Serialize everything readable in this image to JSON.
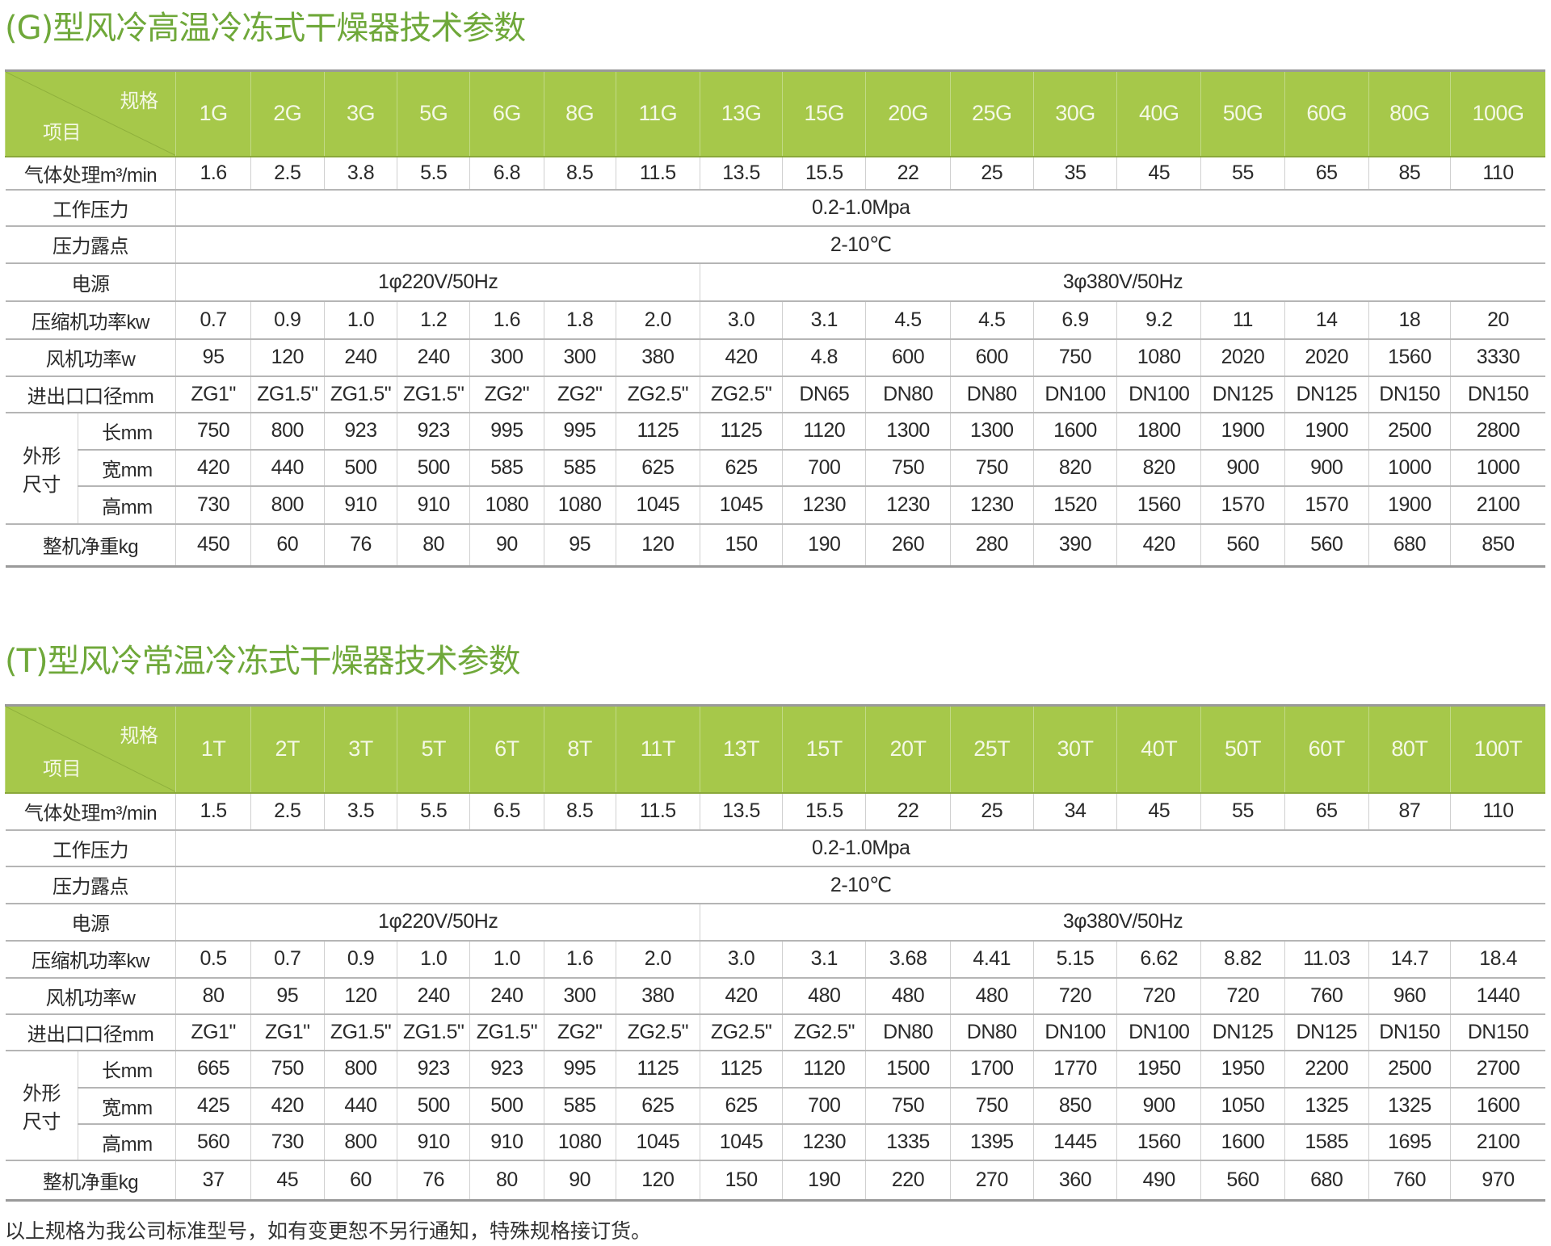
{
  "tables": [
    {
      "title": "(G)型风冷高温冷冻式干燥器技术参数",
      "corner_spec": "规格",
      "corner_item": "项目",
      "models": [
        "1G",
        "2G",
        "3G",
        "5G",
        "6G",
        "8G",
        "11G",
        "13G",
        "15G",
        "20G",
        "25G",
        "30G",
        "40G",
        "50G",
        "60G",
        "80G",
        "100G"
      ],
      "flow": {
        "label": "气体处理m³/min",
        "values": [
          "1.6",
          "2.5",
          "3.8",
          "5.5",
          "6.8",
          "8.5",
          "11.5",
          "13.5",
          "15.5",
          "22",
          "25",
          "35",
          "45",
          "55",
          "65",
          "85",
          "110"
        ]
      },
      "pressure": {
        "label": "工作压力",
        "value": "0.2-1.0Mpa"
      },
      "dewpoint": {
        "label": "压力露点",
        "value": "2-10℃"
      },
      "power": {
        "label": "电源",
        "single": "1φ220V/50Hz",
        "three": "3φ380V/50Hz"
      },
      "compressor": {
        "label": "压缩机功率kw",
        "values": [
          "0.7",
          "0.9",
          "1.0",
          "1.2",
          "1.6",
          "1.8",
          "2.0",
          "3.0",
          "3.1",
          "4.5",
          "4.5",
          "6.9",
          "9.2",
          "11",
          "14",
          "18",
          "20"
        ]
      },
      "fan": {
        "label": "风机功率w",
        "values": [
          "95",
          "120",
          "240",
          "240",
          "300",
          "300",
          "380",
          "420",
          "4.8",
          "600",
          "600",
          "750",
          "1080",
          "2020",
          "2020",
          "1560",
          "3330"
        ]
      },
      "port": {
        "label": "进出口口径mm",
        "values": [
          "ZG1\"",
          "ZG1.5\"",
          "ZG1.5\"",
          "ZG1.5\"",
          "ZG2\"",
          "ZG2\"",
          "ZG2.5\"",
          "ZG2.5\"",
          "DN65",
          "DN80",
          "DN80",
          "DN100",
          "DN100",
          "DN125",
          "DN125",
          "DN150",
          "DN150"
        ]
      },
      "dims": {
        "label_line1": "外形",
        "label_line2": "尺寸",
        "length": {
          "label": "长mm",
          "values": [
            "750",
            "800",
            "923",
            "923",
            "995",
            "995",
            "1125",
            "1125",
            "1120",
            "1300",
            "1300",
            "1600",
            "1800",
            "1900",
            "1900",
            "2500",
            "2800"
          ]
        },
        "width": {
          "label": "宽mm",
          "values": [
            "420",
            "440",
            "500",
            "500",
            "585",
            "585",
            "625",
            "625",
            "700",
            "750",
            "750",
            "820",
            "820",
            "900",
            "900",
            "1000",
            "1000"
          ]
        },
        "height": {
          "label": "高mm",
          "values": [
            "730",
            "800",
            "910",
            "910",
            "1080",
            "1080",
            "1045",
            "1045",
            "1230",
            "1230",
            "1230",
            "1520",
            "1560",
            "1570",
            "1570",
            "1900",
            "2100"
          ]
        }
      },
      "weight": {
        "label": "整机净重kg",
        "values": [
          "450",
          "60",
          "76",
          "80",
          "90",
          "95",
          "120",
          "150",
          "190",
          "260",
          "280",
          "390",
          "420",
          "560",
          "560",
          "680",
          "850"
        ]
      }
    },
    {
      "title": "(T)型风冷常温冷冻式干燥器技术参数",
      "corner_spec": "规格",
      "corner_item": "项目",
      "models": [
        "1T",
        "2T",
        "3T",
        "5T",
        "6T",
        "8T",
        "11T",
        "13T",
        "15T",
        "20T",
        "25T",
        "30T",
        "40T",
        "50T",
        "60T",
        "80T",
        "100T"
      ],
      "flow": {
        "label": "气体处理m³/min",
        "values": [
          "1.5",
          "2.5",
          "3.5",
          "5.5",
          "6.5",
          "8.5",
          "11.5",
          "13.5",
          "15.5",
          "22",
          "25",
          "34",
          "45",
          "55",
          "65",
          "87",
          "110"
        ]
      },
      "pressure": {
        "label": "工作压力",
        "value": "0.2-1.0Mpa"
      },
      "dewpoint": {
        "label": "压力露点",
        "value": "2-10℃"
      },
      "power": {
        "label": "电源",
        "single": "1φ220V/50Hz",
        "three": "3φ380V/50Hz"
      },
      "compressor": {
        "label": "压缩机功率kw",
        "values": [
          "0.5",
          "0.7",
          "0.9",
          "1.0",
          "1.0",
          "1.6",
          "2.0",
          "3.0",
          "3.1",
          "3.68",
          "4.41",
          "5.15",
          "6.62",
          "8.82",
          "11.03",
          "14.7",
          "18.4"
        ]
      },
      "fan": {
        "label": "风机功率w",
        "values": [
          "80",
          "95",
          "120",
          "240",
          "240",
          "300",
          "380",
          "420",
          "480",
          "480",
          "480",
          "720",
          "720",
          "720",
          "760",
          "960",
          "1440"
        ]
      },
      "port": {
        "label": "进出口口径mm",
        "values": [
          "ZG1\"",
          "ZG1\"",
          "ZG1.5\"",
          "ZG1.5\"",
          "ZG1.5\"",
          "ZG2\"",
          "ZG2.5\"",
          "ZG2.5\"",
          "ZG2.5\"",
          "DN80",
          "DN80",
          "DN100",
          "DN100",
          "DN125",
          "DN125",
          "DN150",
          "DN150"
        ]
      },
      "dims": {
        "label_line1": "外形",
        "label_line2": "尺寸",
        "length": {
          "label": "长mm",
          "values": [
            "665",
            "750",
            "800",
            "923",
            "923",
            "995",
            "1125",
            "1125",
            "1120",
            "1500",
            "1700",
            "1770",
            "1950",
            "1950",
            "2200",
            "2500",
            "2700"
          ]
        },
        "width": {
          "label": "宽mm",
          "values": [
            "425",
            "420",
            "440",
            "500",
            "500",
            "585",
            "625",
            "625",
            "700",
            "750",
            "750",
            "850",
            "900",
            "1050",
            "1325",
            "1325",
            "1600"
          ]
        },
        "height": {
          "label": "高mm",
          "values": [
            "560",
            "730",
            "800",
            "910",
            "910",
            "1080",
            "1045",
            "1045",
            "1230",
            "1335",
            "1395",
            "1445",
            "1560",
            "1600",
            "1585",
            "1695",
            "2100"
          ]
        }
      },
      "weight": {
        "label": "整机净重kg",
        "values": [
          "37",
          "45",
          "60",
          "76",
          "80",
          "90",
          "120",
          "150",
          "190",
          "220",
          "270",
          "360",
          "490",
          "560",
          "680",
          "760",
          "970"
        ]
      }
    }
  ],
  "footnote": "以上规格为我公司标准型号，如有变更恕不另行通知，特殊规格接订货。",
  "colors": {
    "header_green": "#a6c84a",
    "title_green": "#6fa83a"
  }
}
